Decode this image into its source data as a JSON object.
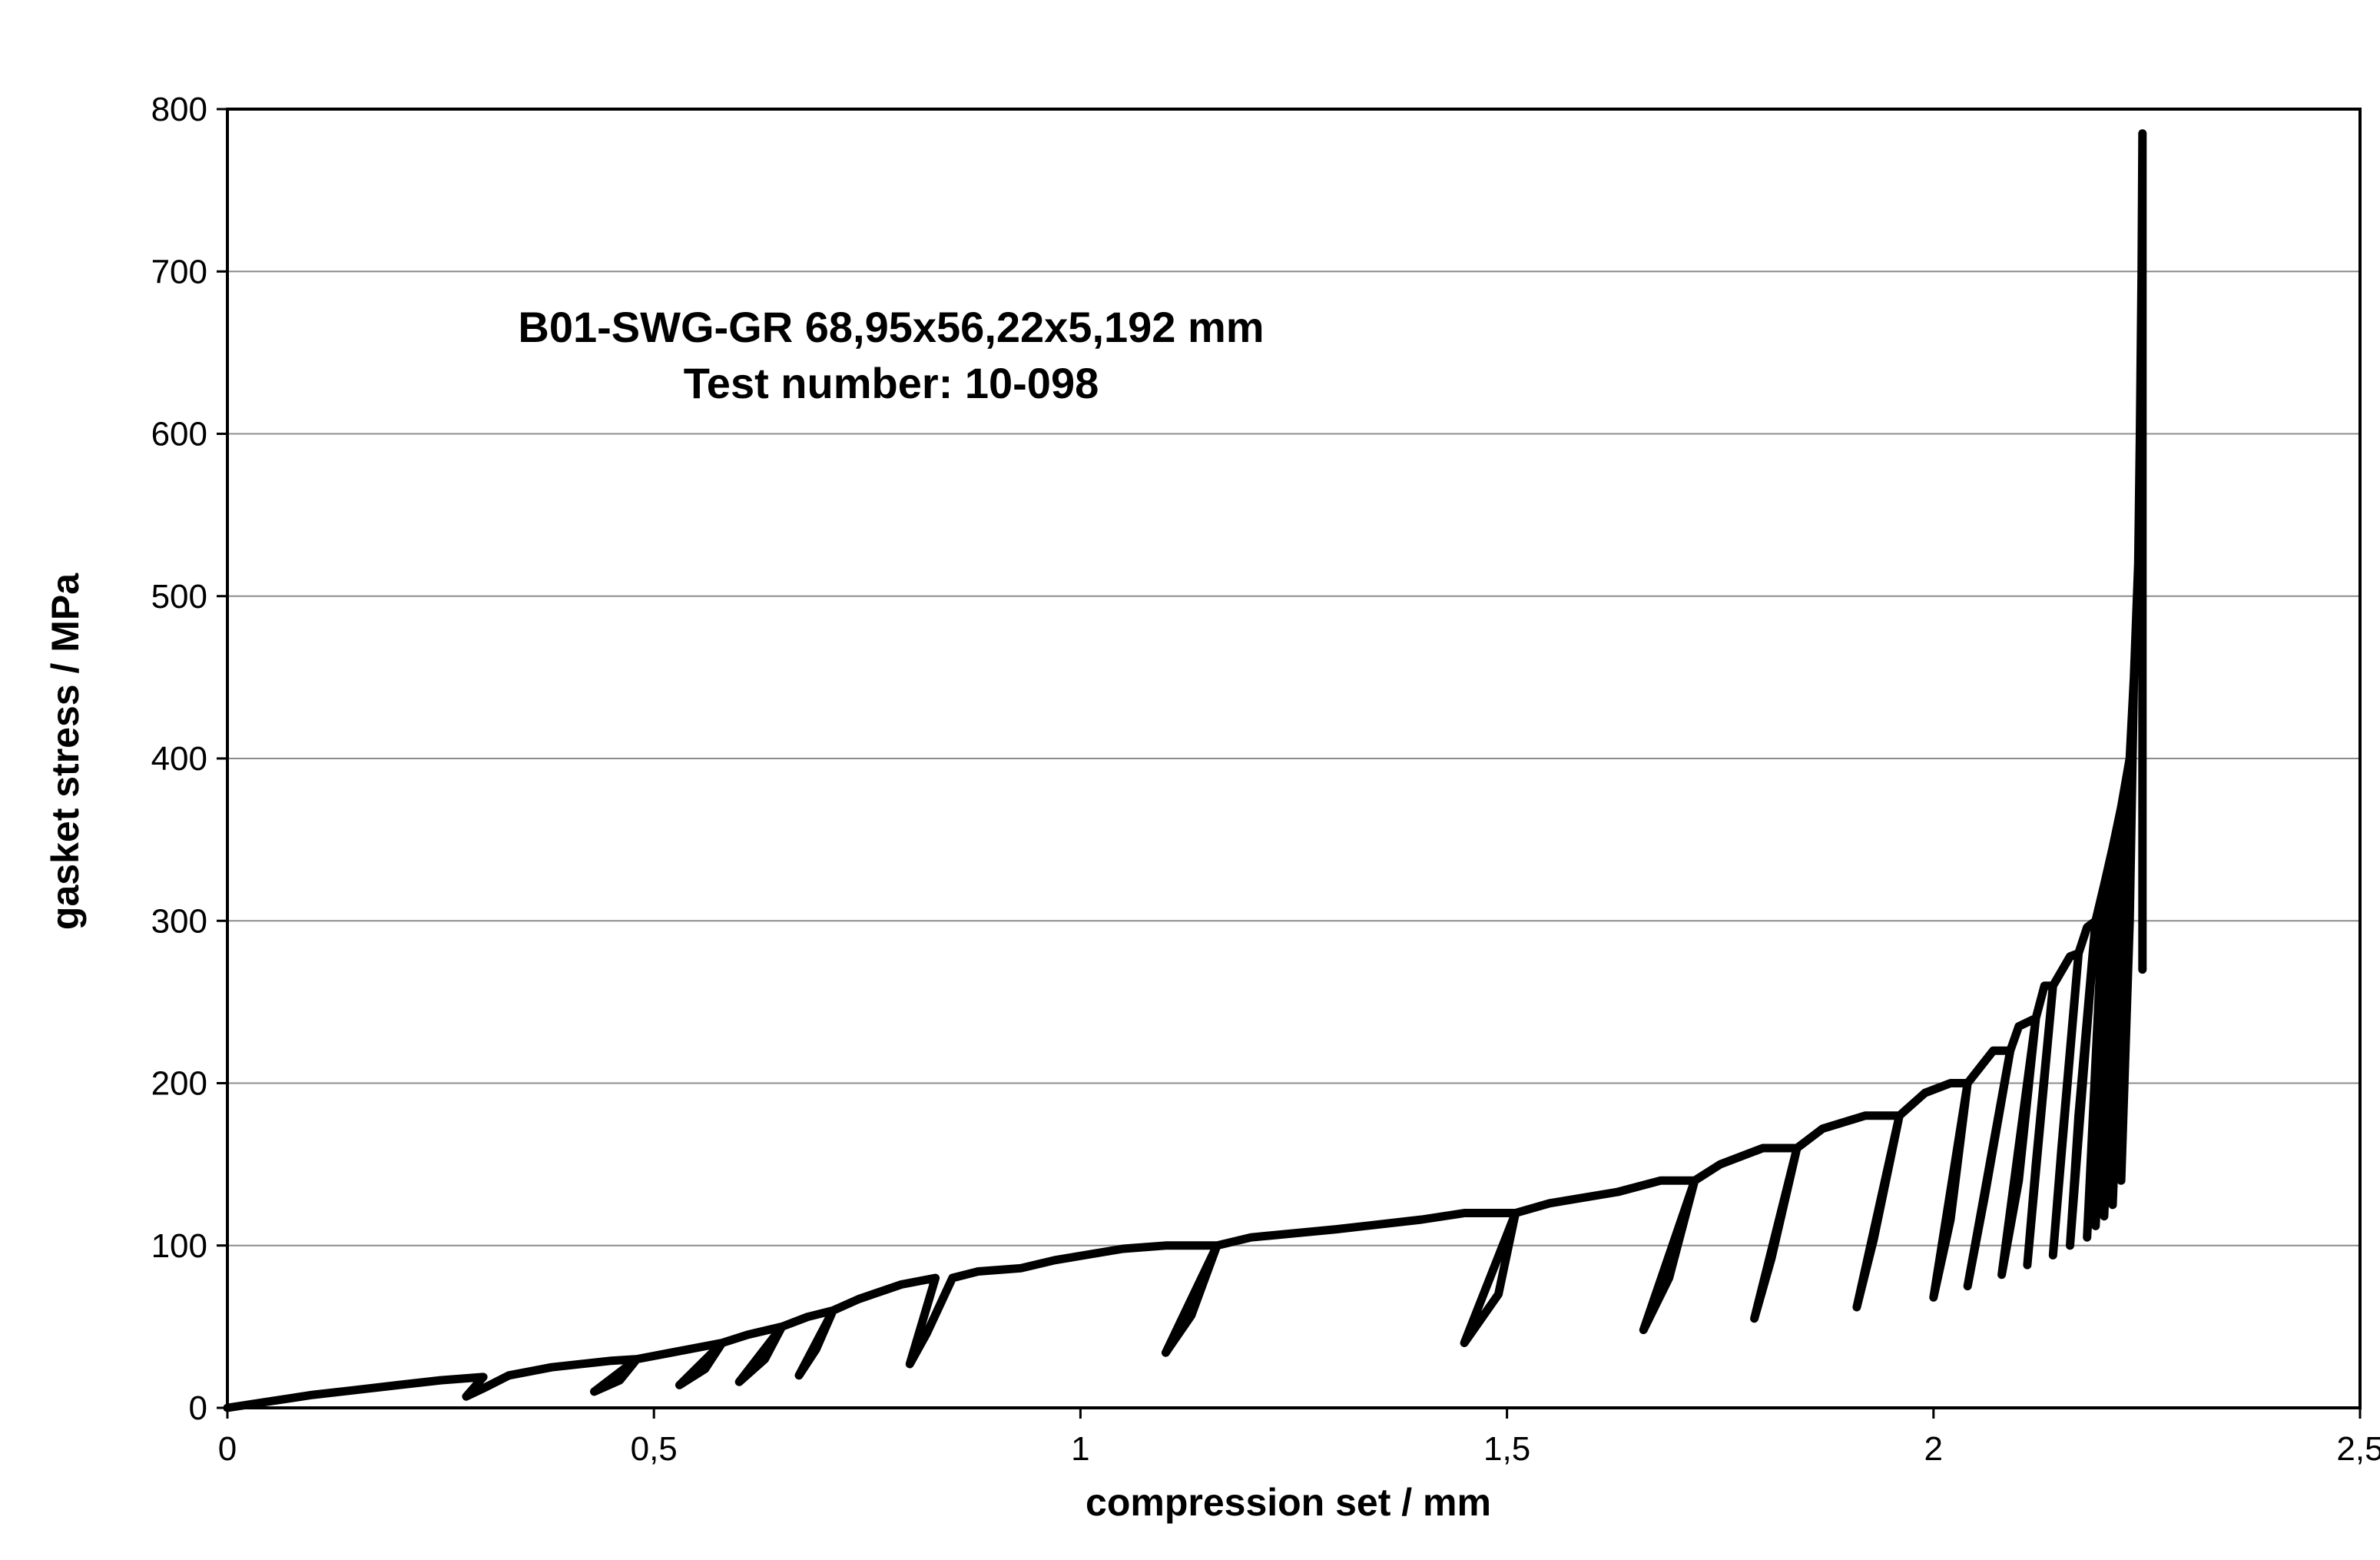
{
  "chart_data": {
    "type": "line",
    "xlabel": "compression set / mm",
    "ylabel": "gasket stress / MPa",
    "xlim": [
      0,
      2.5
    ],
    "ylim": [
      0,
      800
    ],
    "x_ticks": [
      0,
      0.5,
      1,
      1.5,
      2,
      2.5
    ],
    "x_tick_labels": [
      "0",
      "0,5",
      "1",
      "1,5",
      "2",
      "2,5"
    ],
    "y_ticks": [
      0,
      100,
      200,
      300,
      400,
      500,
      600,
      700,
      800
    ],
    "y_tick_labels": [
      "0",
      "100",
      "200",
      "300",
      "400",
      "500",
      "600",
      "700",
      "800"
    ],
    "grid": "horizontal",
    "legend": "none",
    "annotations": [
      "B01-SWG-GR 68,95x56,22x5,192 mm",
      "Test number: 10-098"
    ],
    "series": [
      {
        "values": [
          [
            0,
            0
          ],
          [
            0.05,
            4
          ],
          [
            0.1,
            8
          ],
          [
            0.15,
            11
          ],
          [
            0.2,
            14
          ],
          [
            0.25,
            17
          ],
          [
            0.3,
            19
          ],
          [
            0.28,
            7
          ],
          [
            0.3,
            12
          ],
          [
            0.33,
            20
          ],
          [
            0.38,
            25
          ],
          [
            0.45,
            29
          ],
          [
            0.48,
            30
          ],
          [
            0.43,
            10
          ],
          [
            0.46,
            17
          ],
          [
            0.48,
            30
          ],
          [
            0.52,
            34
          ],
          [
            0.57,
            39
          ],
          [
            0.58,
            40
          ],
          [
            0.53,
            14
          ],
          [
            0.56,
            24
          ],
          [
            0.58,
            40
          ],
          [
            0.61,
            45
          ],
          [
            0.65,
            50
          ],
          [
            0.6,
            16
          ],
          [
            0.63,
            30
          ],
          [
            0.65,
            50
          ],
          [
            0.68,
            56
          ],
          [
            0.71,
            60
          ],
          [
            0.67,
            20
          ],
          [
            0.69,
            36
          ],
          [
            0.71,
            60
          ],
          [
            0.74,
            67
          ],
          [
            0.79,
            76
          ],
          [
            0.83,
            80
          ],
          [
            0.8,
            27
          ],
          [
            0.82,
            46
          ],
          [
            0.85,
            80
          ],
          [
            0.88,
            84
          ],
          [
            0.93,
            86
          ],
          [
            0.97,
            91
          ],
          [
            1.05,
            98
          ],
          [
            1.1,
            100
          ],
          [
            1.16,
            100
          ],
          [
            1.1,
            34
          ],
          [
            1.13,
            57
          ],
          [
            1.16,
            100
          ],
          [
            1.2,
            105
          ],
          [
            1.3,
            110
          ],
          [
            1.4,
            116
          ],
          [
            1.45,
            120
          ],
          [
            1.51,
            120
          ],
          [
            1.45,
            40
          ],
          [
            1.49,
            70
          ],
          [
            1.51,
            120
          ],
          [
            1.55,
            126
          ],
          [
            1.63,
            133
          ],
          [
            1.68,
            140
          ],
          [
            1.72,
            140
          ],
          [
            1.66,
            48
          ],
          [
            1.69,
            80
          ],
          [
            1.72,
            140
          ],
          [
            1.75,
            150
          ],
          [
            1.8,
            160
          ],
          [
            1.84,
            160
          ],
          [
            1.79,
            55
          ],
          [
            1.81,
            92
          ],
          [
            1.84,
            160
          ],
          [
            1.87,
            172
          ],
          [
            1.92,
            180
          ],
          [
            1.96,
            180
          ],
          [
            1.91,
            62
          ],
          [
            1.93,
            104
          ],
          [
            1.96,
            180
          ],
          [
            1.99,
            194
          ],
          [
            2.02,
            200
          ],
          [
            2.04,
            200
          ],
          [
            2.0,
            68
          ],
          [
            2.02,
            116
          ],
          [
            2.04,
            200
          ],
          [
            2.07,
            220
          ],
          [
            2.09,
            220
          ],
          [
            2.04,
            75
          ],
          [
            2.06,
            130
          ],
          [
            2.09,
            220
          ],
          [
            2.1,
            235
          ],
          [
            2.12,
            240
          ],
          [
            2.08,
            82
          ],
          [
            2.1,
            140
          ],
          [
            2.12,
            240
          ],
          [
            2.13,
            260
          ],
          [
            2.14,
            260
          ],
          [
            2.11,
            88
          ],
          [
            2.12,
            150
          ],
          [
            2.14,
            260
          ],
          [
            2.16,
            278
          ],
          [
            2.17,
            280
          ],
          [
            2.14,
            94
          ],
          [
            2.15,
            160
          ],
          [
            2.17,
            280
          ],
          [
            2.18,
            296
          ],
          [
            2.19,
            300
          ],
          [
            2.16,
            100
          ],
          [
            2.17,
            180
          ],
          [
            2.19,
            300
          ],
          [
            2.2,
            322
          ],
          [
            2.18,
            105
          ],
          [
            2.19,
            200
          ],
          [
            2.2,
            322
          ],
          [
            2.21,
            345
          ],
          [
            2.19,
            112
          ],
          [
            2.2,
            220
          ],
          [
            2.21,
            345
          ],
          [
            2.22,
            370
          ],
          [
            2.2,
            118
          ],
          [
            2.21,
            240
          ],
          [
            2.22,
            370
          ],
          [
            2.23,
            400
          ],
          [
            2.21,
            125
          ],
          [
            2.22,
            260
          ],
          [
            2.23,
            400
          ],
          [
            2.235,
            450
          ],
          [
            2.22,
            140
          ],
          [
            2.23,
            300
          ],
          [
            2.235,
            450
          ],
          [
            2.24,
            520
          ],
          [
            2.242,
            600
          ],
          [
            2.244,
            700
          ],
          [
            2.245,
            785
          ],
          [
            2.245,
            270
          ],
          [
            2.245,
            785
          ]
        ]
      }
    ]
  }
}
